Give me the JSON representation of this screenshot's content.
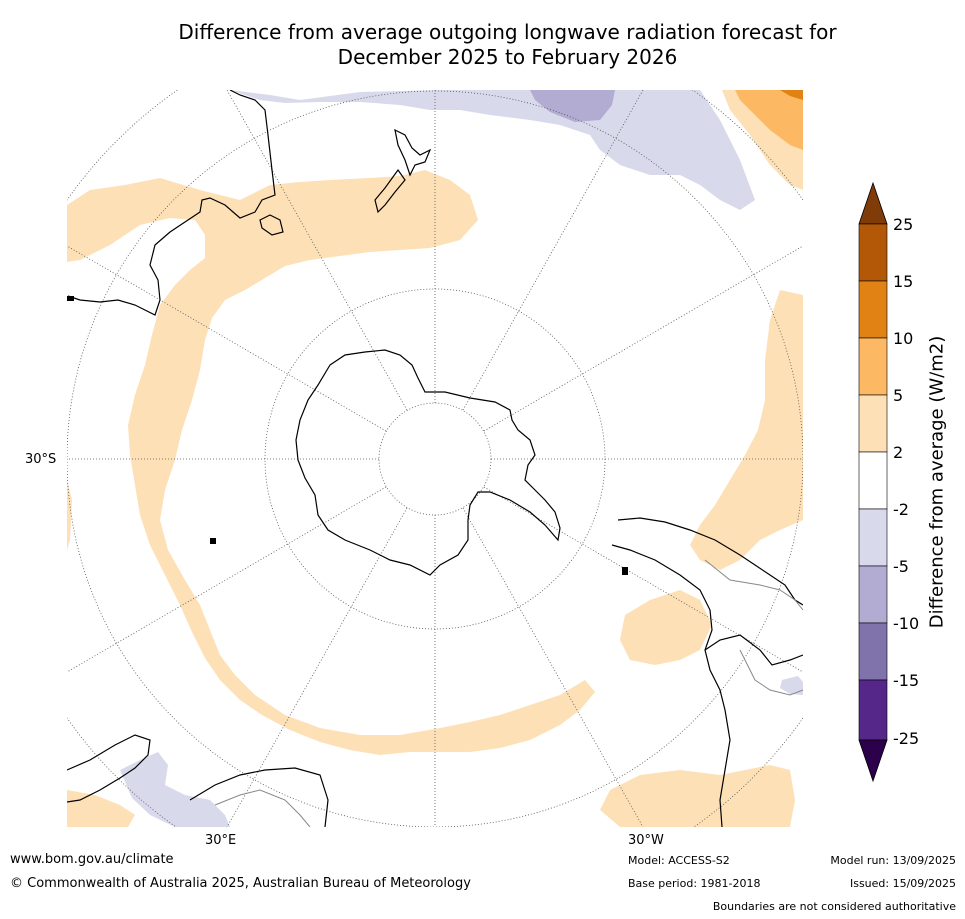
{
  "title_line1": "Difference from average outgoing longwave radiation forecast for",
  "title_line2": "December 2025 to February 2026",
  "map": {
    "projection": "south-polar stereographic",
    "lat_label": "30°S",
    "lon_labels": [
      "30°E",
      "30°W"
    ],
    "regions": [
      "Antarctica",
      "Australia",
      "New Zealand",
      "South America",
      "Africa"
    ]
  },
  "legend": {
    "title": "Difference from average (W/m2)",
    "ticks": [
      "25",
      "15",
      "10",
      "5",
      "2",
      "-2",
      "-5",
      "-10",
      "-15",
      "-25"
    ],
    "colors": {
      "over_25": "#7f3b08",
      "15_to_25": "#b35806",
      "10_to_15": "#e08214",
      "5_to_10": "#fdb863",
      "2_to_5": "#fee0b6",
      "neutral": "#ffffff",
      "m5_to_m2": "#d8daeb",
      "m10_to_m5": "#b2abd2",
      "m15_to_m10": "#8073ac",
      "m25_to_m15": "#542788",
      "under_m25": "#2d004b"
    }
  },
  "footer": {
    "website": "www.bom.gov.au/climate",
    "copyright": "© Commonwealth of Australia 2025, Australian Bureau of Meteorology",
    "model": "Model: ACCESS-S2",
    "base_period": "Base period: 1981-2018",
    "model_run": "Model run: 13/09/2025",
    "issued": "Issued: 15/09/2025",
    "disclaimer": "Boundaries are not considered authoritative"
  }
}
